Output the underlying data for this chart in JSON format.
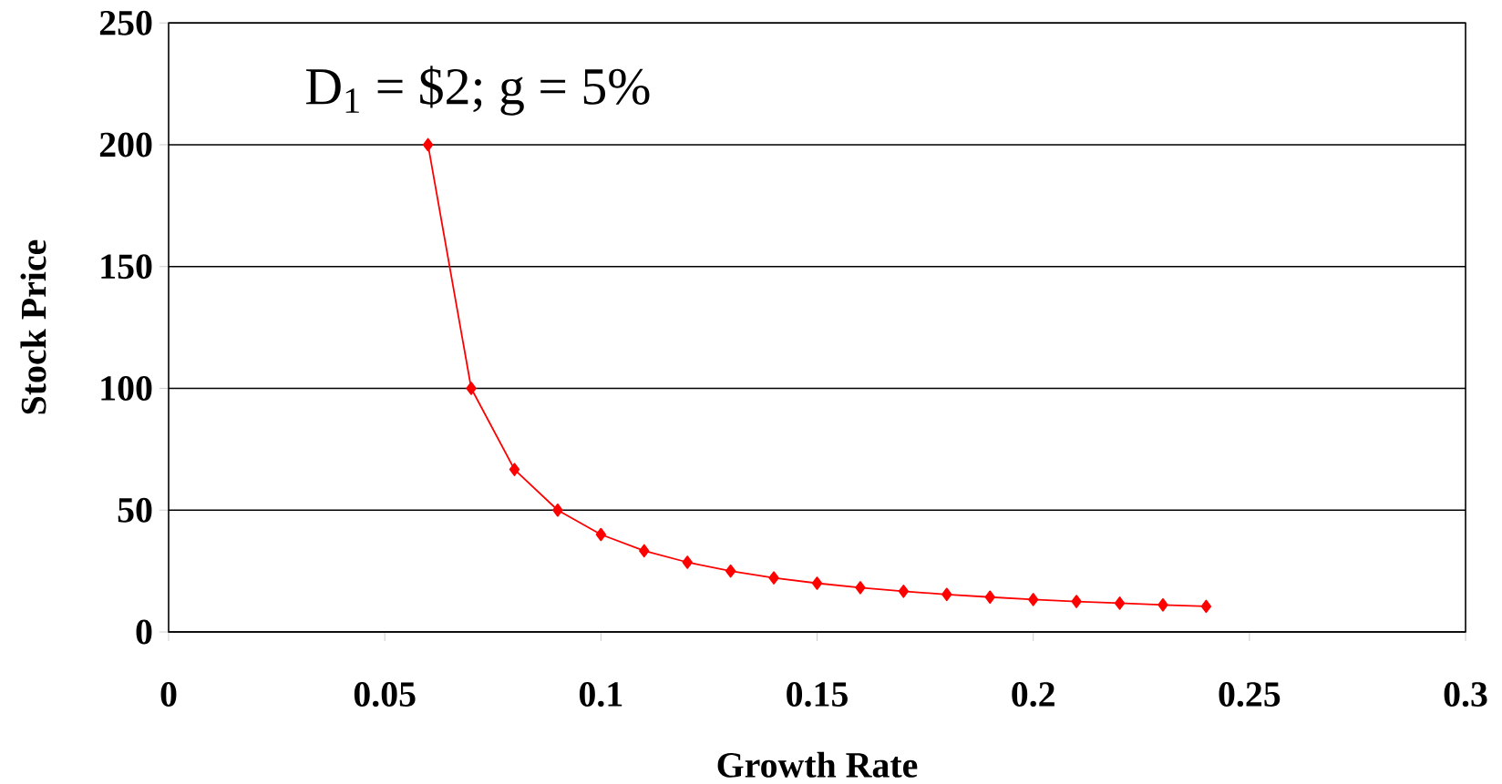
{
  "chart_data": {
    "type": "line",
    "xlabel": "Growth Rate",
    "ylabel": "Stock Price",
    "annotations": [
      "D$_{1}$ = $2; g = 5%"
    ],
    "x": [
      0.06,
      0.07,
      0.08,
      0.09,
      0.1,
      0.11,
      0.12,
      0.13,
      0.14,
      0.15,
      0.16,
      0.17,
      0.18,
      0.19,
      0.2,
      0.21,
      0.22,
      0.23,
      0.24
    ],
    "series": [
      {
        "color": "#ff0000",
        "values": [
          200,
          100,
          66.7,
          50,
          40,
          33.3,
          28.6,
          25,
          22.2,
          20,
          18.2,
          16.7,
          15.4,
          14.3,
          13.3,
          12.5,
          11.8,
          11.1,
          10.5
        ]
      }
    ],
    "xlim": [
      0,
      0.3
    ],
    "ylim": [
      0,
      250
    ],
    "xticks": [
      0,
      0.05,
      0.1,
      0.15,
      0.2,
      0.25,
      0.3
    ],
    "yticks": [
      0,
      50,
      100,
      150,
      200,
      250
    ],
    "grid": "y",
    "marker": "diamond",
    "line_style": "solid"
  }
}
